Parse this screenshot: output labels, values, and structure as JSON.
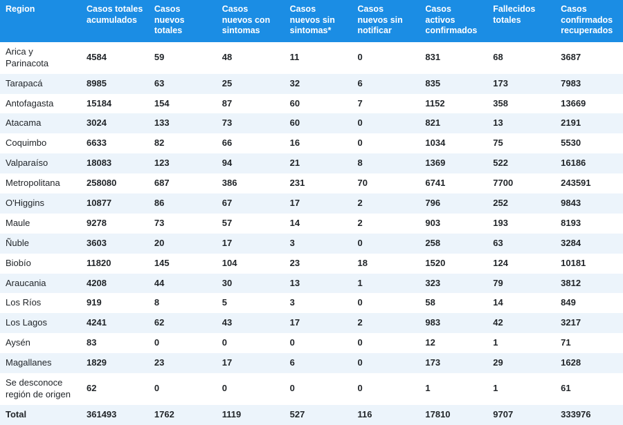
{
  "table": {
    "columns": [
      "Region",
      "Casos totales acumulados",
      "Casos nuevos totales",
      "Casos nuevos con sintomas",
      "Casos nuevos sin sintomas*",
      "Casos nuevos sin notificar",
      "Casos activos confirmados",
      "Fallecidos totales",
      "Casos confirmados recuperados"
    ],
    "rows": [
      {
        "region": "Arica y Parinacota",
        "vals": [
          "4584",
          "59",
          "48",
          "11",
          "0",
          "831",
          "68",
          "3687"
        ]
      },
      {
        "region": "Tarapacá",
        "vals": [
          "8985",
          "63",
          "25",
          "32",
          "6",
          "835",
          "173",
          "7983"
        ]
      },
      {
        "region": "Antofagasta",
        "vals": [
          "15184",
          "154",
          "87",
          "60",
          "7",
          "1152",
          "358",
          "13669"
        ]
      },
      {
        "region": "Atacama",
        "vals": [
          "3024",
          "133",
          "73",
          "60",
          "0",
          "821",
          "13",
          "2191"
        ]
      },
      {
        "region": "Coquimbo",
        "vals": [
          "6633",
          "82",
          "66",
          "16",
          "0",
          "1034",
          "75",
          "5530"
        ]
      },
      {
        "region": "Valparaíso",
        "vals": [
          "18083",
          "123",
          "94",
          "21",
          "8",
          "1369",
          "522",
          "16186"
        ]
      },
      {
        "region": "Metropolitana",
        "vals": [
          "258080",
          "687",
          "386",
          "231",
          "70",
          "6741",
          "7700",
          "243591"
        ]
      },
      {
        "region": "O'Higgins",
        "vals": [
          "10877",
          "86",
          "67",
          "17",
          "2",
          "796",
          "252",
          "9843"
        ]
      },
      {
        "region": "Maule",
        "vals": [
          "9278",
          "73",
          "57",
          "14",
          "2",
          "903",
          "193",
          "8193"
        ]
      },
      {
        "region": "Ñuble",
        "vals": [
          "3603",
          "20",
          "17",
          "3",
          "0",
          "258",
          "63",
          "3284"
        ]
      },
      {
        "region": "Biobío",
        "vals": [
          "11820",
          "145",
          "104",
          "23",
          "18",
          "1520",
          "124",
          "10181"
        ]
      },
      {
        "region": "Araucania",
        "vals": [
          "4208",
          "44",
          "30",
          "13",
          "1",
          "323",
          "79",
          "3812"
        ]
      },
      {
        "region": "Los Ríos",
        "vals": [
          "919",
          "8",
          "5",
          "3",
          "0",
          "58",
          "14",
          "849"
        ]
      },
      {
        "region": "Los Lagos",
        "vals": [
          "4241",
          "62",
          "43",
          "17",
          "2",
          "983",
          "42",
          "3217"
        ]
      },
      {
        "region": "Aysén",
        "vals": [
          "83",
          "0",
          "0",
          "0",
          "0",
          "12",
          "1",
          "71"
        ]
      },
      {
        "region": "Magallanes",
        "vals": [
          "1829",
          "23",
          "17",
          "6",
          "0",
          "173",
          "29",
          "1628"
        ]
      },
      {
        "region": "Se desconoce región de origen",
        "vals": [
          "62",
          "0",
          "0",
          "0",
          "0",
          "1",
          "1",
          "61"
        ]
      }
    ],
    "total": {
      "region": "Total",
      "vals": [
        "361493",
        "1762",
        "1119",
        "527",
        "116",
        "17810",
        "9707",
        "333976"
      ]
    },
    "styling": {
      "header_bg": "#1b8de4",
      "header_color": "#ffffff",
      "stripe_bg": "#ecf4fb",
      "text_color": "#212529",
      "header_fontsize": 12.5,
      "body_fontsize": 13,
      "header_fontweight": 700,
      "region_fontweight": 400,
      "value_fontweight": 600,
      "total_fontweight": 700
    }
  }
}
